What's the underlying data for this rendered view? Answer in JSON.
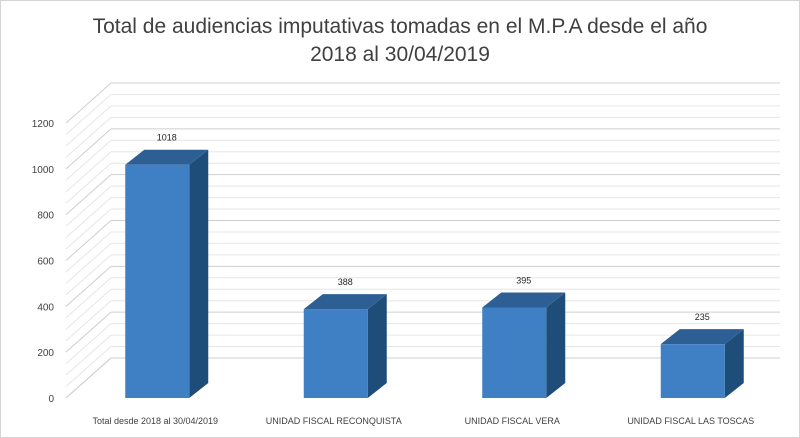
{
  "chart_data": {
    "type": "bar",
    "title_line1": "Total de audiencias imputativas tomadas en el M.P.A desde el año",
    "title_line2": "2018 al 30/04/2019",
    "categories": [
      "Total desde 2018 al 30/04/2019",
      "UNIDAD FISCAL RECONQUISTA",
      "UNIDAD FISCAL VERA",
      "UNIDAD FISCAL LAS TOSCAS"
    ],
    "values": [
      1018,
      388,
      395,
      235
    ],
    "value_labels": [
      "1018",
      "388",
      "395",
      "235"
    ],
    "yticks": [
      "0",
      "200",
      "400",
      "600",
      "800",
      "1000",
      "1200"
    ],
    "ylim": [
      0,
      1200
    ],
    "xlabel": "",
    "ylabel": "",
    "style": "3d-column",
    "colors": {
      "front": "#3f7fc3",
      "top": "#2d5f95",
      "side": "#1d4d78",
      "grid": "#d9d9d9"
    }
  }
}
